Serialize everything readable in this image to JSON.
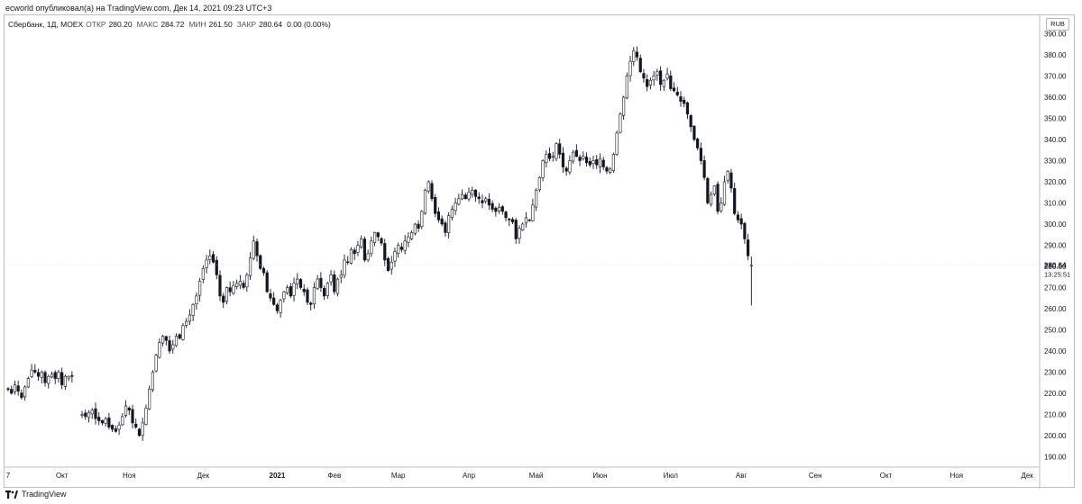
{
  "header": {
    "published_line": "ecworld опубликовал(а) на TradingView.com, Дек 14, 2021 09:23 UTC+3"
  },
  "legend": {
    "symbol": "Сбербанк, 1Д, MOEX",
    "open_label": "ОТКР",
    "open_value": "280.20",
    "high_label": "МАКС",
    "high_value": "284.72",
    "low_label": "МИН",
    "low_value": "261.50",
    "close_label": "ЗАКР",
    "close_value": "280.64",
    "change_value": "0.00 (0.00%)"
  },
  "currency": "RUB",
  "last_price": {
    "value": "280.64",
    "countdown": "13:25:51"
  },
  "footer": {
    "brand": "TradingView"
  },
  "colors": {
    "candle": "#131722",
    "axis_text": "#131722",
    "border": "#bfbfbf"
  },
  "chart_data": {
    "type": "candlestick",
    "ylim": [
      185,
      395
    ],
    "y_ticks": [
      "190.00",
      "200.00",
      "210.00",
      "220.00",
      "230.00",
      "240.00",
      "250.00",
      "260.00",
      "270.00",
      "280.00",
      "290.00",
      "300.00",
      "310.00",
      "320.00",
      "330.00",
      "340.00",
      "350.00",
      "360.00",
      "370.00",
      "380.00",
      "390.00"
    ],
    "x_ticks": [
      {
        "label": "7",
        "idx": 0
      },
      {
        "label": "Окт",
        "idx": 16
      },
      {
        "label": "Ноя",
        "idx": 36
      },
      {
        "label": "Дек",
        "idx": 58
      },
      {
        "label": "2021",
        "idx": 80
      },
      {
        "label": "Фев",
        "idx": 97
      },
      {
        "label": "Мар",
        "idx": 116
      },
      {
        "label": "Апр",
        "idx": 137
      },
      {
        "label": "Май",
        "idx": 157
      },
      {
        "label": "Июн",
        "idx": 176
      },
      {
        "label": "Июл",
        "idx": 197
      },
      {
        "label": "Авг",
        "idx": 218
      },
      {
        "label": "Сен",
        "idx": 240
      },
      {
        "label": "Окт",
        "idx": 261
      },
      {
        "label": "Ноя",
        "idx": 282
      },
      {
        "label": "Дек",
        "idx": 303
      }
    ],
    "gaps": [
      {
        "after": 18,
        "bars": 2
      }
    ],
    "series": [
      {
        "name": "Сбербанк",
        "closes": [
          222,
          220,
          224,
          221,
          218,
          223,
          227,
          231,
          230,
          228,
          230,
          225,
          228,
          229,
          227,
          230,
          224,
          228,
          228,
          228
        ]
      },
      {
        "name": "Сбербанк",
        "closes": [
          210,
          209,
          211,
          212,
          208,
          207,
          206,
          208,
          204,
          203,
          202,
          205,
          209,
          214,
          212,
          206,
          204,
          200,
          206,
          213,
          222,
          230,
          238,
          244,
          247,
          245,
          240,
          243,
          247,
          246,
          252,
          254,
          257,
          262,
          266,
          273,
          279,
          283,
          285,
          282,
          276,
          266,
          263,
          270,
          268,
          271,
          272,
          273,
          270,
          276,
          284,
          292,
          285,
          279,
          277,
          268,
          265,
          262,
          259,
          264,
          268,
          270,
          266,
          272,
          274,
          270,
          268,
          263,
          262,
          270,
          274,
          270,
          266,
          272,
          276,
          268,
          274,
          276,
          283,
          282,
          288,
          286,
          290,
          293,
          283,
          286,
          292,
          296,
          294,
          291,
          283,
          278,
          282,
          287,
          290,
          288,
          292,
          294,
          296,
          300,
          298,
          306,
          316,
          320,
          312,
          305,
          302,
          300,
          296,
          304,
          307,
          310,
          312,
          314,
          312,
          315,
          316,
          313,
          312,
          310,
          312,
          309,
          307,
          306,
          308,
          306,
          303,
          302,
          301,
          293,
          298,
          300,
          303,
          302,
          309,
          316,
          322,
          330,
          333,
          331,
          332,
          338,
          333,
          327,
          325,
          330,
          334,
          332,
          330,
          332,
          329,
          328,
          330,
          328,
          331,
          327,
          325,
          326,
          333,
          343,
          352,
          360,
          370,
          377,
          382,
          379,
          372,
          369,
          365,
          368,
          370,
          372,
          366,
          368,
          371,
          364,
          363,
          361,
          358,
          357,
          352,
          346,
          340,
          336,
          330,
          322,
          310,
          314,
          318,
          306,
          310,
          320,
          325,
          317,
          305,
          302,
          300,
          293,
          285,
          280.64
        ]
      }
    ]
  }
}
